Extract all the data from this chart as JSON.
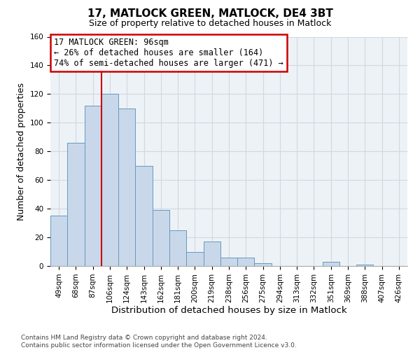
{
  "title": "17, MATLOCK GREEN, MATLOCK, DE4 3BT",
  "subtitle": "Size of property relative to detached houses in Matlock",
  "xlabel": "Distribution of detached houses by size in Matlock",
  "ylabel": "Number of detached properties",
  "bin_labels": [
    "49sqm",
    "68sqm",
    "87sqm",
    "106sqm",
    "124sqm",
    "143sqm",
    "162sqm",
    "181sqm",
    "200sqm",
    "219sqm",
    "238sqm",
    "256sqm",
    "275sqm",
    "294sqm",
    "313sqm",
    "332sqm",
    "351sqm",
    "369sqm",
    "388sqm",
    "407sqm",
    "426sqm"
  ],
  "bar_heights": [
    35,
    86,
    112,
    120,
    110,
    70,
    39,
    25,
    10,
    17,
    6,
    6,
    2,
    0,
    0,
    0,
    3,
    0,
    1,
    0,
    0
  ],
  "bar_color": "#c8d8ea",
  "bar_edge_color": "#6699bb",
  "ylim": [
    0,
    160
  ],
  "yticks": [
    0,
    20,
    40,
    60,
    80,
    100,
    120,
    140,
    160
  ],
  "annotation_title": "17 MATLOCK GREEN: 96sqm",
  "annotation_line1": "← 26% of detached houses are smaller (164)",
  "annotation_line2": "74% of semi-detached houses are larger (471) →",
  "annotation_box_facecolor": "#ffffff",
  "annotation_box_edgecolor": "#cc0000",
  "property_line_color": "#cc0000",
  "property_line_bin_index": 2.5,
  "footer_line1": "Contains HM Land Registry data © Crown copyright and database right 2024.",
  "footer_line2": "Contains public sector information licensed under the Open Government Licence v3.0.",
  "grid_color": "#d0d8e0",
  "background_color": "#edf2f7",
  "title_fontsize": 11,
  "subtitle_fontsize": 9,
  "ylabel_fontsize": 9,
  "xlabel_fontsize": 9.5,
  "tick_fontsize": 7.5,
  "footer_fontsize": 6.5,
  "annotation_fontsize": 8.5
}
